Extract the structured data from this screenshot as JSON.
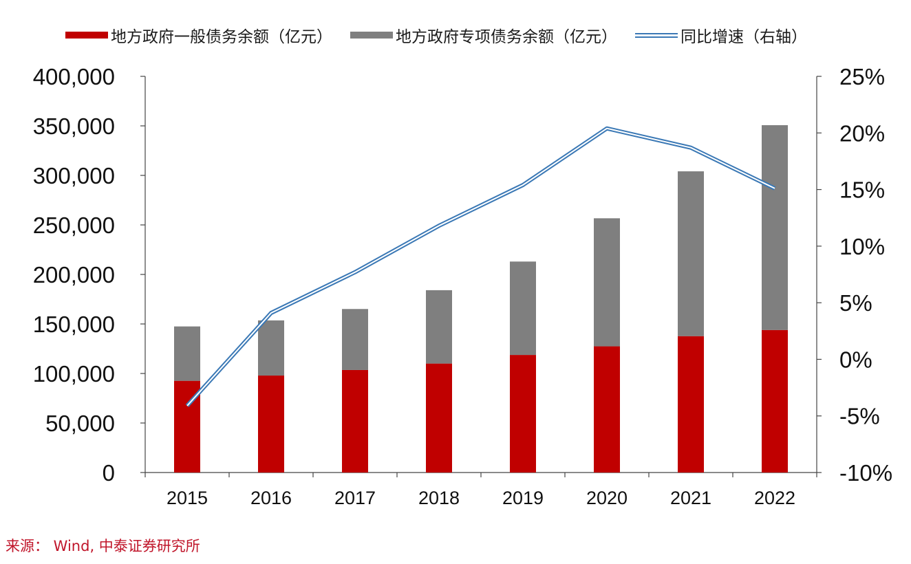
{
  "chart_data": {
    "type": "bar",
    "stacked": true,
    "categories": [
      "2015",
      "2016",
      "2017",
      "2018",
      "2019",
      "2020",
      "2021",
      "2022"
    ],
    "series": [
      {
        "name": "地方政府一般债务余额（亿元）",
        "type": "bar",
        "axis": "left",
        "color": "#c00000",
        "values": [
          92600,
          97900,
          103500,
          110000,
          118700,
          127400,
          137700,
          143900
        ]
      },
      {
        "name": "地方政府专项债务余额（亿元）",
        "type": "bar",
        "axis": "left",
        "color": "#7f7f7f",
        "values": [
          54900,
          55700,
          61600,
          74100,
          94300,
          129300,
          166400,
          206800
        ]
      },
      {
        "name": "同比增速（右轴）",
        "type": "line",
        "axis": "right",
        "color": "#3a78b5",
        "values": [
          -4.1,
          4.1,
          7.7,
          11.8,
          15.4,
          20.4,
          18.7,
          15.1
        ]
      }
    ],
    "y_left": {
      "lim": [
        0,
        400000
      ],
      "ticks": [
        "0",
        "50,000",
        "100,000",
        "150,000",
        "200,000",
        "250,000",
        "300,000",
        "350,000",
        "400,000"
      ]
    },
    "y_right": {
      "lim": [
        -10,
        25
      ],
      "ticks": [
        "-10%",
        "-5%",
        "0%",
        "5%",
        "10%",
        "15%",
        "20%",
        "25%"
      ]
    },
    "legend": "top",
    "grid": false
  },
  "legend": {
    "item1": "地方政府一般债务余额（亿元）",
    "item2": "地方政府专项债务余额（亿元）",
    "item3": "同比增速（右轴）"
  },
  "source": "来源： Wind, 中泰证券研究所"
}
